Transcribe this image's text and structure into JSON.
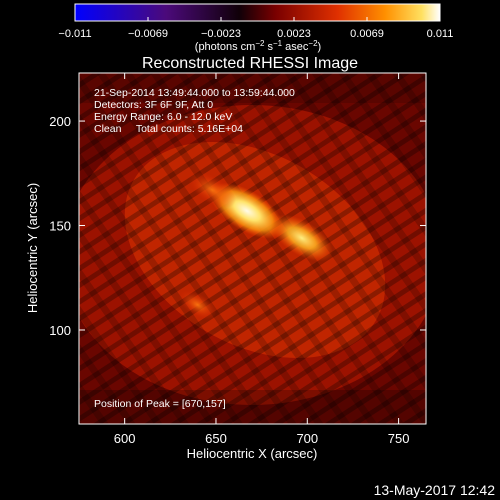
{
  "colorbar": {
    "tick_labels": [
      "−0.011",
      "−0.0069",
      "−0.0023",
      "0.0023",
      "0.0069",
      "0.011"
    ],
    "units_main": "(photons cm",
    "units_sup1": "−2",
    "units_mid": " s",
    "units_sup2": "−1",
    "units_tail": " asec",
    "units_sup3": "−2",
    "units_close": ")",
    "colors": [
      "#0000ff",
      "#4b0a7a",
      "#000000",
      "#7a0000",
      "#e03000",
      "#ff9000",
      "#ffe060",
      "#ffffff"
    ]
  },
  "image": {
    "title": "Reconstructed RHESSI Image",
    "info_lines": [
      "21-Sep-2014 13:49:44.000 to 13:59:44.000",
      "Detectors: 3F 6F 9F, Att 0",
      "Energy Range: 6.0 - 12.0 keV",
      "Clean     Total counts: 5.16E+04"
    ],
    "peak_text": "Position of Peak = [670,157]"
  },
  "footer": {
    "date": "13-May-2017 12:42"
  },
  "chart_data": {
    "type": "heatmap",
    "title": "Reconstructed RHESSI Image",
    "xlabel": "Heliocentric X (arcsec)",
    "ylabel": "Heliocentric Y (arcsec)",
    "xlim": [
      575,
      765
    ],
    "ylim": [
      55,
      223
    ],
    "x_ticks": [
      600,
      650,
      700,
      750
    ],
    "y_ticks": [
      100,
      150,
      200
    ],
    "color_range": [
      -0.011,
      0.011
    ],
    "peak_position": [
      670,
      157
    ],
    "sources": [
      {
        "x": 667,
        "y": 157,
        "intensity": 1.0
      },
      {
        "x": 697,
        "y": 144,
        "intensity": 0.75
      },
      {
        "x": 648,
        "y": 167,
        "intensity": 0.45
      },
      {
        "x": 640,
        "y": 112,
        "intensity": 0.25
      }
    ]
  }
}
